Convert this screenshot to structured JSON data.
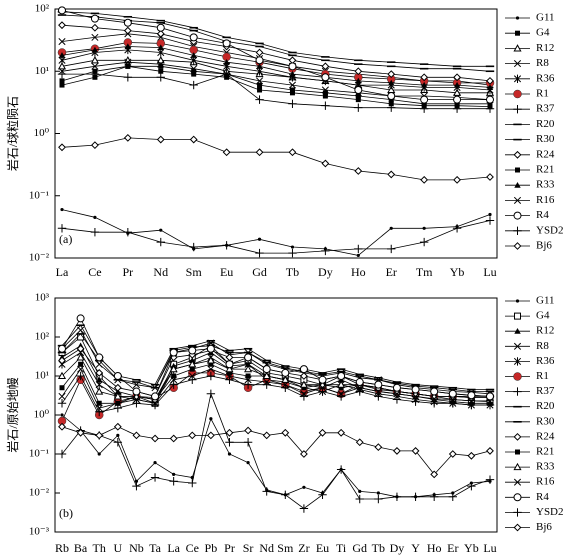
{
  "chart_data": [
    {
      "type": "line",
      "y_label": "岩石/球粒陨石",
      "annotation": "(a)",
      "log_y": true,
      "categories": [
        "La",
        "Ce",
        "Pr",
        "Nd",
        "Sm",
        "Eu",
        "Gd",
        "Tb",
        "Dy",
        "Ho",
        "Er",
        "Tm",
        "Yb",
        "Lu"
      ],
      "ylim": [
        0.01,
        100
      ],
      "yticks": [
        {
          "value": 0.01,
          "label": "10⁻²"
        },
        {
          "value": 0.1,
          "label": "10⁻¹"
        },
        {
          "value": 1,
          "label": "10⁰"
        },
        {
          "value": 10,
          "label": "10¹"
        },
        {
          "value": 100,
          "label": "10²"
        }
      ],
      "series": [
        {
          "name": "G11",
          "color": "#000000",
          "marker": "dot",
          "values": [
            0.06,
            0.045,
            0.025,
            0.028,
            0.014,
            0.016,
            0.02,
            0.015,
            0.014,
            0.011,
            0.03,
            0.03,
            0.032,
            0.05
          ]
        },
        {
          "name": "G4",
          "color": "#000000",
          "marker": "square",
          "values": [
            7,
            10,
            12,
            12,
            10,
            9,
            6,
            5,
            4.5,
            4,
            3.5,
            3,
            3,
            3
          ]
        },
        {
          "name": "R12",
          "color": "#000000",
          "marker": "triangle-open",
          "values": [
            12,
            15,
            15,
            15,
            14,
            10,
            9,
            8,
            7,
            6,
            5,
            5,
            4.5,
            4.5
          ]
        },
        {
          "name": "R8",
          "color": "#000000",
          "marker": "x",
          "values": [
            30,
            35,
            40,
            35,
            25,
            20,
            16,
            12,
            10,
            9,
            8,
            7,
            7,
            6
          ]
        },
        {
          "name": "R36",
          "color": "#000000",
          "marker": "star",
          "values": [
            15,
            20,
            22,
            20,
            15,
            12,
            10,
            8,
            7,
            6,
            6,
            5.5,
            5.5,
            5
          ]
        },
        {
          "name": "R1",
          "color": "#000000",
          "marker_color": "#c62828",
          "marker": "circle",
          "values": [
            20,
            23,
            29,
            28,
            22,
            17,
            14,
            11,
            9,
            8,
            7.5,
            7,
            6.5,
            6.5
          ]
        },
        {
          "name": "R37",
          "color": "#000000",
          "marker": "plus",
          "values": [
            9,
            9,
            8,
            8,
            6,
            9,
            3.5,
            3,
            2.8,
            2.6,
            2.6,
            2.5,
            2.5,
            2.5
          ]
        },
        {
          "name": "R20",
          "color": "#000000",
          "marker": "dash",
          "values": [
            90,
            85,
            75,
            65,
            50,
            35,
            28,
            20,
            17,
            15,
            14,
            13,
            12,
            12
          ]
        },
        {
          "name": "R30",
          "color": "#000000",
          "marker": "dash",
          "values": [
            80,
            75,
            65,
            60,
            45,
            30,
            25,
            18,
            15,
            13,
            12,
            11,
            11,
            10
          ]
        },
        {
          "name": "R24",
          "color": "#000000",
          "marker": "diamond-open",
          "values": [
            55,
            50,
            45,
            40,
            30,
            25,
            20,
            15,
            12,
            10,
            9,
            8,
            8,
            7
          ]
        },
        {
          "name": "R21",
          "color": "#000000",
          "marker": "square",
          "values": [
            6,
            8,
            12,
            10,
            9,
            8,
            5,
            4.5,
            4,
            3.5,
            3,
            2.8,
            2.8,
            2.7
          ]
        },
        {
          "name": "R33",
          "color": "#000000",
          "marker": "triangle",
          "values": [
            18,
            22,
            25,
            24,
            18,
            14,
            12,
            9,
            8,
            7,
            6.5,
            6,
            6,
            5.5
          ]
        },
        {
          "name": "R16",
          "color": "#000000",
          "marker": "x",
          "values": [
            10,
            12,
            14,
            13,
            11,
            9,
            7,
            6,
            5,
            4.5,
            4,
            4,
            3.8,
            3.5
          ]
        },
        {
          "name": "R4",
          "color": "#000000",
          "marker": "circle-open",
          "values": [
            95,
            70,
            60,
            50,
            35,
            28,
            15,
            12,
            8,
            5,
            4,
            3.5,
            3.5,
            3.5
          ]
        },
        {
          "name": "YSD2",
          "color": "#000000",
          "marker": "plus",
          "values": [
            0.03,
            0.026,
            0.026,
            0.018,
            0.015,
            0.016,
            0.012,
            0.012,
            0.013,
            0.014,
            0.014,
            0.018,
            0.03,
            0.04
          ]
        },
        {
          "name": "Bj6",
          "color": "#000000",
          "marker": "diamond-open",
          "values": [
            0.6,
            0.65,
            0.85,
            0.8,
            0.8,
            0.5,
            0.5,
            0.5,
            0.33,
            0.25,
            0.22,
            0.18,
            0.18,
            0.2
          ]
        }
      ]
    },
    {
      "type": "line",
      "y_label": "岩石/原始地幔",
      "annotation": "(b)",
      "log_y": true,
      "categories": [
        "Rb",
        "Ba",
        "Th",
        "U",
        "Nb",
        "Ta",
        "La",
        "Ce",
        "Pb",
        "Pr",
        "Sr",
        "Nd",
        "Sm",
        "Zr",
        "Eu",
        "Ti",
        "Gd",
        "Tb",
        "Dy",
        "Y",
        "Ho",
        "Er",
        "Yb",
        "Lu"
      ],
      "ylim": [
        0.001,
        1000
      ],
      "yticks": [
        {
          "value": 0.001,
          "label": "10⁻³"
        },
        {
          "value": 0.01,
          "label": "10⁻²"
        },
        {
          "value": 0.1,
          "label": "10⁻¹"
        },
        {
          "value": 1,
          "label": "10⁰"
        },
        {
          "value": 10,
          "label": "10¹"
        },
        {
          "value": 100,
          "label": "10²"
        },
        {
          "value": 1000,
          "label": "10³"
        }
      ],
      "series": [
        {
          "name": "G11",
          "color": "#000000",
          "marker": "dot",
          "values": [
            1,
            0.4,
            0.1,
            0.3,
            0.02,
            0.06,
            0.03,
            0.025,
            0.8,
            0.1,
            0.06,
            0.012,
            0.009,
            0.014,
            0.01,
            0.04,
            0.011,
            0.01,
            0.008,
            0.008,
            0.009,
            0.01,
            0.018,
            0.02
          ]
        },
        {
          "name": "G4",
          "color": "#000000",
          "marker": "square-open",
          "values": [
            40,
            100,
            10,
            3,
            3,
            2,
            20,
            30,
            60,
            20,
            25,
            12,
            10,
            8,
            6,
            10,
            6,
            5,
            4,
            3.5,
            3,
            2.5,
            2.3,
            2.2
          ]
        },
        {
          "name": "R12",
          "color": "#000000",
          "marker": "triangle",
          "values": [
            30,
            60,
            8,
            4,
            3,
            2.5,
            18,
            25,
            40,
            18,
            20,
            10,
            8,
            6,
            5,
            8,
            5,
            4,
            3.5,
            3,
            2.5,
            2.2,
            2,
            2
          ]
        },
        {
          "name": "R8",
          "color": "#000000",
          "marker": "x",
          "values": [
            50,
            150,
            20,
            8,
            6,
            5,
            40,
            50,
            70,
            35,
            40,
            20,
            15,
            12,
            10,
            12,
            9,
            8,
            6,
            5,
            4.5,
            4,
            3.8,
            3.5
          ]
        },
        {
          "name": "R36",
          "color": "#000000",
          "marker": "star",
          "values": [
            20,
            40,
            6,
            3,
            2.5,
            2,
            15,
            20,
            30,
            15,
            20,
            8,
            7,
            5,
            4,
            6,
            4.5,
            3.5,
            3,
            2.5,
            2.2,
            2,
            1.8,
            1.8
          ]
        },
        {
          "name": "R1",
          "color": "#000000",
          "marker_color": "#c62828",
          "marker": "circle",
          "values": [
            0.7,
            8,
            1,
            2.2,
            3,
            2.8,
            5,
            12,
            12,
            10,
            5,
            8,
            6,
            4,
            5,
            3.5,
            6,
            4.5,
            4,
            3.5,
            3,
            3,
            3,
            3
          ]
        },
        {
          "name": "R37",
          "color": "#000000",
          "marker": "plus",
          "values": [
            2,
            10,
            1.2,
            1.5,
            2,
            1.8,
            6,
            8,
            10,
            8,
            6,
            6,
            5,
            3,
            4,
            3,
            4,
            3,
            2.5,
            2.2,
            2,
            2,
            1.8,
            1.8
          ]
        },
        {
          "name": "R20",
          "color": "#000000",
          "marker": "dash",
          "values": [
            60,
            200,
            30,
            10,
            8,
            6,
            50,
            60,
            80,
            45,
            50,
            25,
            18,
            15,
            12,
            15,
            11,
            9,
            7,
            6,
            5.5,
            5,
            4.5,
            4.5
          ]
        },
        {
          "name": "R30",
          "color": "#000000",
          "marker": "dash",
          "values": [
            40,
            120,
            25,
            8,
            7,
            5,
            45,
            55,
            60,
            40,
            40,
            22,
            16,
            13,
            11,
            13,
            10,
            8,
            6.5,
            5.5,
            5,
            4.5,
            4,
            4
          ]
        },
        {
          "name": "R24",
          "color": "#000000",
          "marker": "diamond-open",
          "values": [
            25,
            50,
            12,
            5,
            4,
            3,
            30,
            35,
            45,
            30,
            30,
            15,
            12,
            10,
            8,
            10,
            7,
            6,
            5,
            4.5,
            4,
            3.5,
            3.2,
            3
          ]
        },
        {
          "name": "R21",
          "color": "#000000",
          "marker": "square",
          "values": [
            5,
            20,
            2,
            2,
            3,
            2.5,
            10,
            15,
            20,
            12,
            10,
            10,
            8,
            5,
            6,
            5,
            6,
            5,
            4,
            3.5,
            3,
            3,
            2.8,
            2.8
          ]
        },
        {
          "name": "R33",
          "color": "#000000",
          "marker": "triangle-open",
          "values": [
            10,
            30,
            4,
            3,
            3,
            2.5,
            15,
            20,
            25,
            15,
            15,
            10,
            8,
            6,
            6,
            6,
            6,
            5,
            4,
            3.5,
            3,
            3,
            2.8,
            2.8
          ]
        },
        {
          "name": "R16",
          "color": "#000000",
          "marker": "x",
          "values": [
            3,
            15,
            1.5,
            2,
            2.5,
            2,
            8,
            10,
            15,
            10,
            8,
            7,
            6,
            3.5,
            5,
            3.5,
            5,
            4,
            3.5,
            3,
            2.6,
            2.5,
            2.3,
            2.3
          ]
        },
        {
          "name": "R4",
          "color": "#000000",
          "marker": "circle-open",
          "values": [
            50,
            300,
            30,
            10,
            4,
            3,
            40,
            45,
            50,
            20,
            30,
            15,
            12,
            15,
            8,
            10,
            7,
            6,
            5,
            4.5,
            4,
            3.5,
            3.2,
            3
          ]
        },
        {
          "name": "YSD2",
          "color": "#000000",
          "marker": "plus",
          "values": [
            0.1,
            0.4,
            0.3,
            0.2,
            0.015,
            0.025,
            0.02,
            0.018,
            3.5,
            0.2,
            0.2,
            0.011,
            0.009,
            0.004,
            0.009,
            0.04,
            0.007,
            0.007,
            0.008,
            0.008,
            0.008,
            0.008,
            0.015,
            0.022
          ]
        },
        {
          "name": "Bj6",
          "color": "#000000",
          "marker": "diamond-open",
          "values": [
            0.5,
            0.35,
            0.3,
            0.5,
            0.3,
            0.25,
            0.25,
            0.3,
            0.3,
            0.35,
            0.4,
            0.3,
            0.35,
            0.1,
            0.35,
            0.35,
            0.2,
            0.15,
            0.12,
            0.12,
            0.03,
            0.1,
            0.09,
            0.12
          ]
        }
      ]
    }
  ]
}
